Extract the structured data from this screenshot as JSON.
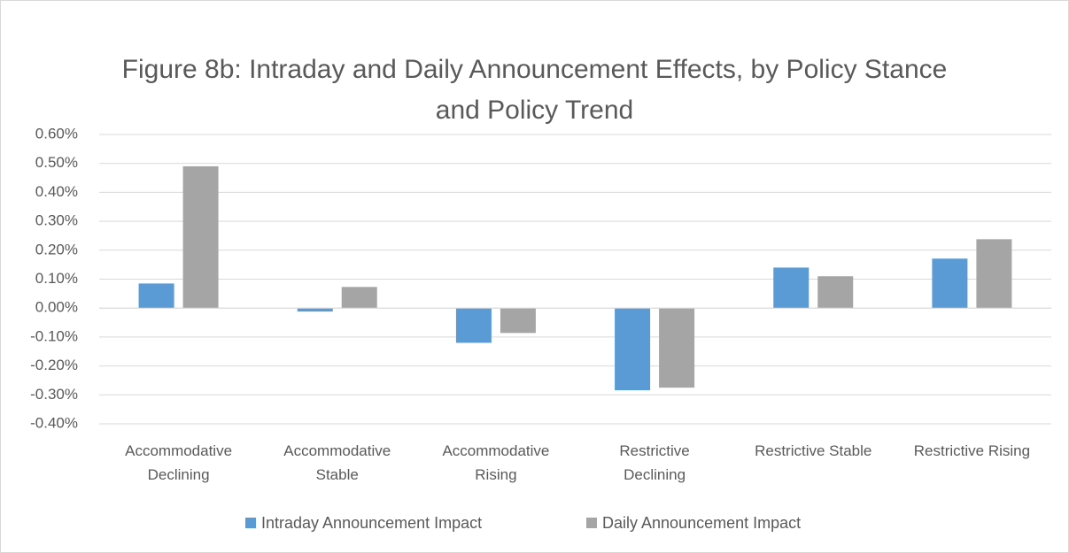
{
  "chart_data": {
    "type": "bar",
    "title": "Figure 8b: Intraday and Daily Announcement Effects, by Policy Stance and Policy Trend",
    "categories": [
      "Accommodative\nDeclining",
      "Accommodative\nStable",
      "Accommodative\nRising",
      "Restrictive\nDeclining",
      "Restrictive Stable",
      "Restrictive Rising"
    ],
    "series": [
      {
        "name": "Intraday Announcement Impact",
        "color": "#5b9bd5",
        "values": [
          0.085,
          -0.012,
          -0.12,
          -0.284,
          0.14,
          0.171
        ]
      },
      {
        "name": "Daily Announcement Impact",
        "color": "#a5a5a5",
        "values": [
          0.49,
          0.073,
          -0.086,
          -0.275,
          0.11,
          0.238
        ]
      }
    ],
    "ylim": [
      -0.4,
      0.6
    ],
    "yticks": [
      {
        "value": -0.4,
        "label": "-0.40%"
      },
      {
        "value": -0.3,
        "label": "-0.30%"
      },
      {
        "value": -0.2,
        "label": "-0.20%"
      },
      {
        "value": -0.1,
        "label": "-0.10%"
      },
      {
        "value": 0,
        "label": "0.00%"
      },
      {
        "value": 0.1,
        "label": "0.10%"
      },
      {
        "value": 0.2,
        "label": "0.20%"
      },
      {
        "value": 0.3,
        "label": "0.30%"
      },
      {
        "value": 0.4,
        "label": "0.40%"
      },
      {
        "value": 0.5,
        "label": "0.50%"
      },
      {
        "value": 0.6,
        "label": "0.60%"
      }
    ],
    "grid": true,
    "legend": "bottom"
  }
}
